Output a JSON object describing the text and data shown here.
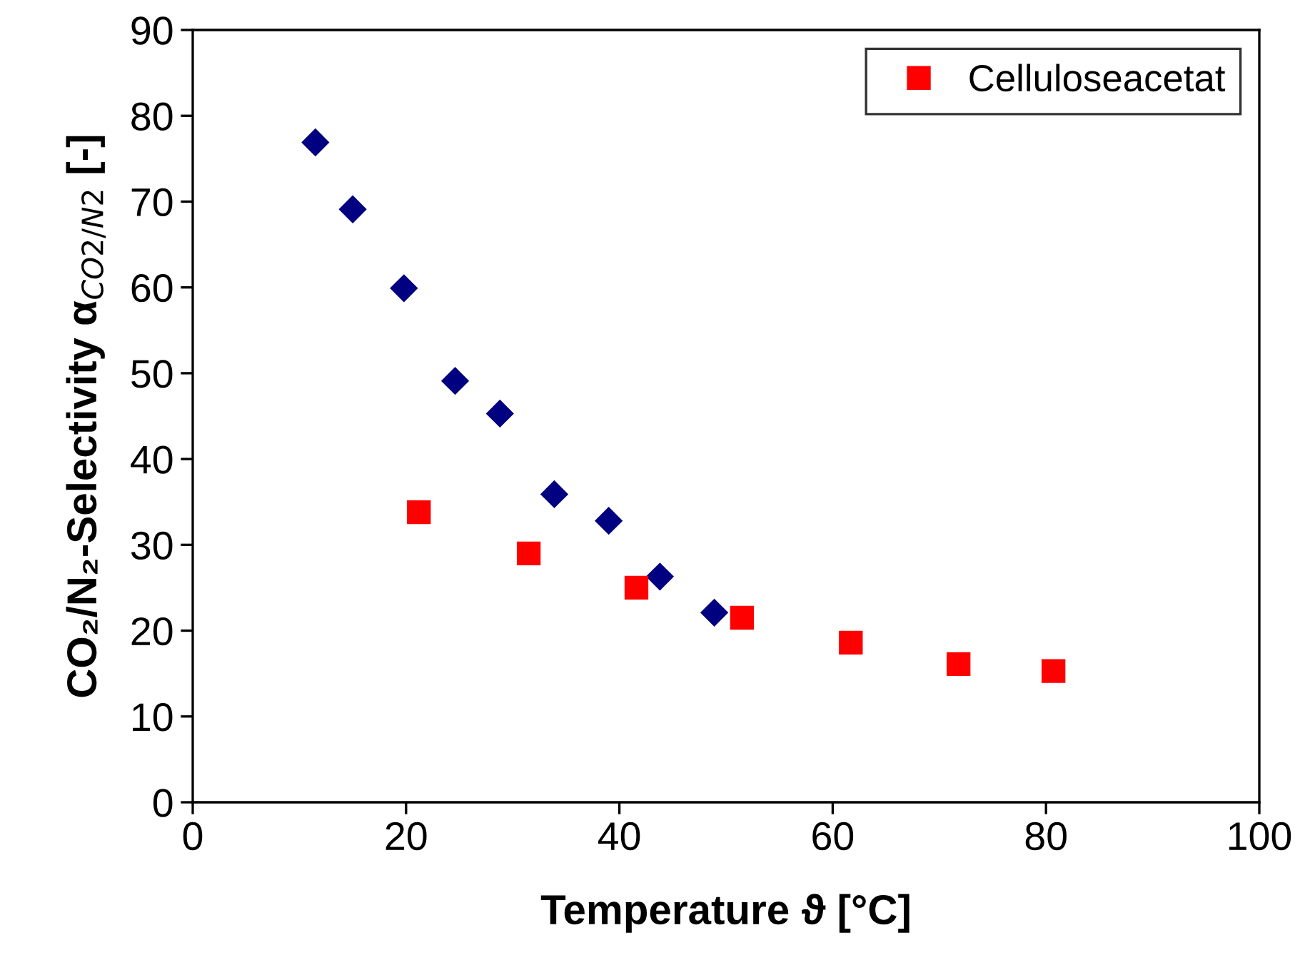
{
  "chart_data": {
    "type": "scatter",
    "xlabel": "Temperature ϑ [°C]",
    "ylabel": "CO₂/N₂-Selectivity α$_{CO2/N2}$ [-]",
    "xlim": [
      0,
      100
    ],
    "xticks": [
      0,
      20,
      40,
      60,
      80,
      100
    ],
    "ylim": [
      0,
      90
    ],
    "yticks": [
      0,
      10,
      20,
      30,
      40,
      50,
      60,
      70,
      80,
      90
    ],
    "grid": false,
    "legend": "top right",
    "series": [
      {
        "color": "#000080",
        "marker": "diamond",
        "x": [
          11.5,
          15.0,
          19.8,
          24.6,
          28.8,
          33.9,
          39.0,
          43.8,
          48.9
        ],
        "values": [
          76.9,
          69.1,
          59.9,
          49.1,
          45.3,
          35.9,
          32.8,
          26.3,
          22.1
        ]
      },
      {
        "name": "Celluloseacetat",
        "color": "#ff0000",
        "marker": "square",
        "x": [
          21.2,
          31.5,
          41.6,
          51.5,
          61.7,
          71.8,
          80.7
        ],
        "values": [
          33.8,
          29.0,
          25.0,
          21.5,
          18.6,
          16.1,
          15.3
        ]
      }
    ]
  }
}
